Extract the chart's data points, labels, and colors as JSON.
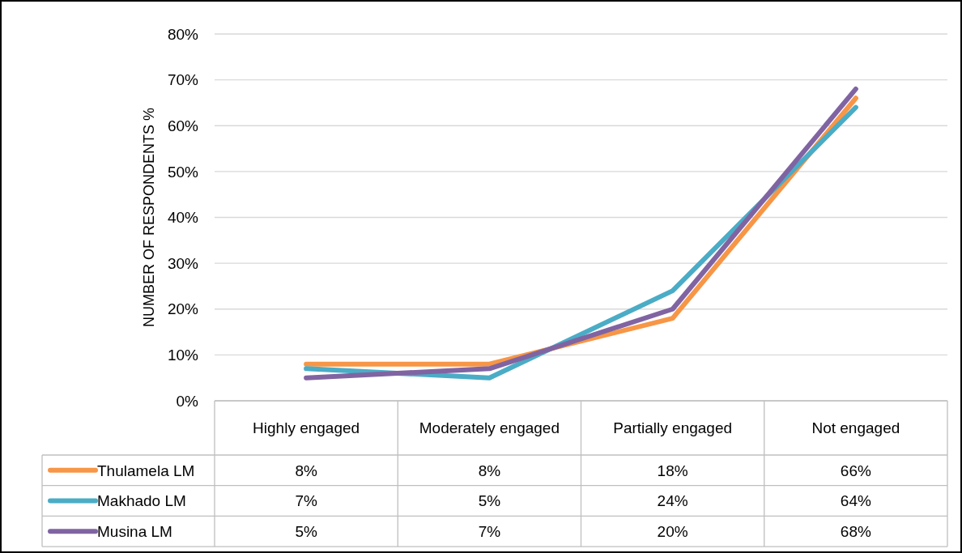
{
  "chart_data": {
    "type": "line",
    "ylabel": "NUMBER OF RESPONDENTS %",
    "categories": [
      "Highly engaged",
      "Moderately engaged",
      "Partially engaged",
      "Not engaged"
    ],
    "series": [
      {
        "name": "Thulamela LM",
        "color": "#f79646",
        "values": [
          8,
          8,
          18,
          66
        ],
        "value_labels": [
          "8%",
          "8%",
          "18%",
          "66%"
        ]
      },
      {
        "name": "Makhado LM",
        "color": "#4bacc6",
        "values": [
          7,
          5,
          24,
          64
        ],
        "value_labels": [
          "7%",
          "5%",
          "24%",
          "64%"
        ]
      },
      {
        "name": "Musina LM",
        "color": "#8064a2",
        "values": [
          5,
          7,
          20,
          68
        ],
        "value_labels": [
          "5%",
          "7%",
          "20%",
          "68%"
        ]
      }
    ],
    "ylim": [
      0,
      80
    ],
    "yticks": [
      {
        "value": 0,
        "label": "0%"
      },
      {
        "value": 10,
        "label": "10%"
      },
      {
        "value": 20,
        "label": "20%"
      },
      {
        "value": 30,
        "label": "30%"
      },
      {
        "value": 40,
        "label": "40%"
      },
      {
        "value": 50,
        "label": "50%"
      },
      {
        "value": 60,
        "label": "60%"
      },
      {
        "value": 70,
        "label": "70%"
      },
      {
        "value": 80,
        "label": "80%"
      }
    ],
    "grid": "y",
    "legend": "bottom",
    "marker": "none",
    "line_style": "solid"
  }
}
